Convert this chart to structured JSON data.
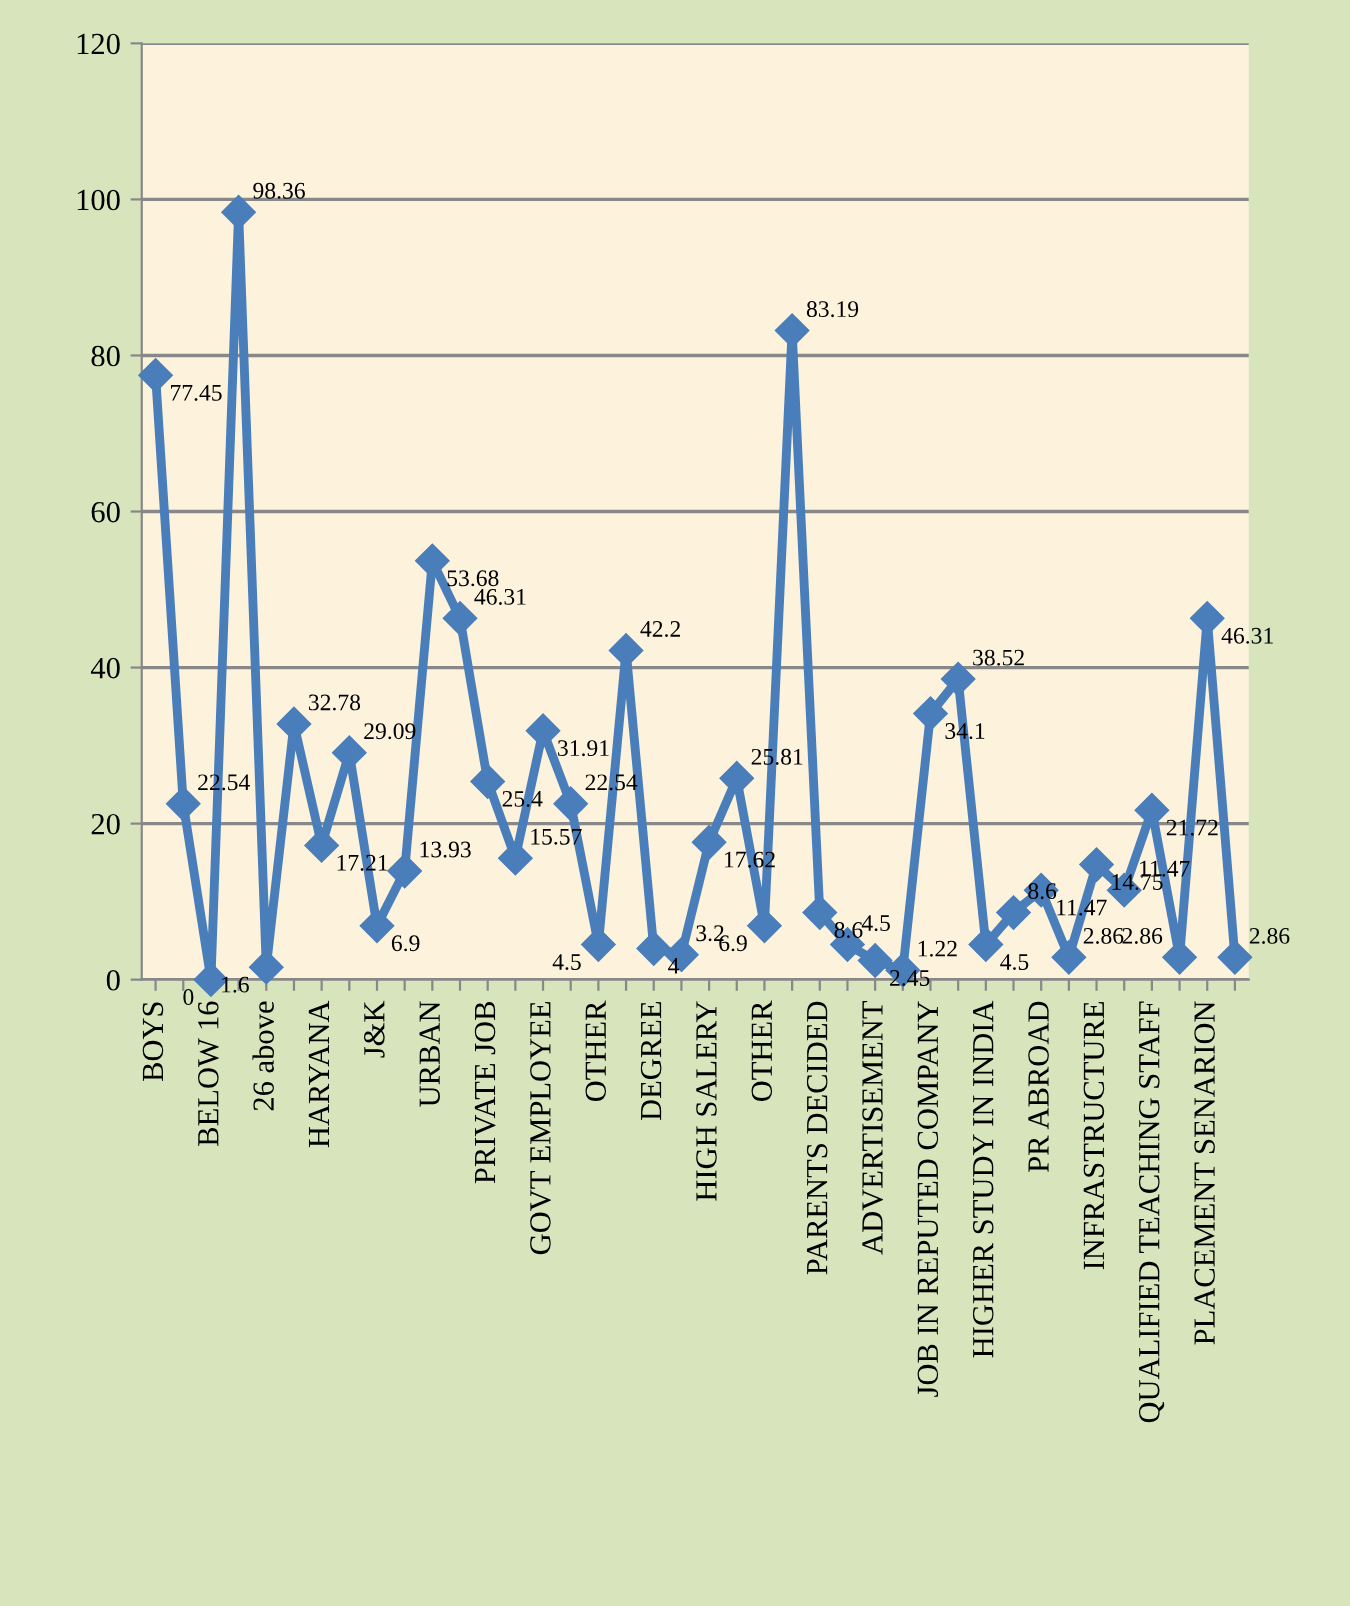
{
  "chart_data": {
    "type": "line",
    "categories": [
      "BOYS",
      null,
      "BELOW 16",
      null,
      "26 above",
      null,
      "HARYANA",
      null,
      "J&K",
      null,
      "URBAN",
      null,
      "PRIVATE JOB",
      null,
      "GOVT EMPLOYEE",
      null,
      "OTHER",
      null,
      "DEGREE",
      null,
      "HIGH SALERY",
      null,
      "OTHER",
      null,
      "PARENTS DECIDED",
      null,
      "ADVERTISEMENT",
      null,
      "JOB IN REPUTED COMPANY",
      null,
      "HIGHER STUDY IN INDIA",
      null,
      "PR ABROAD",
      null,
      "INFRASTRUCTURE",
      null,
      "QUALIFIED TEACHING STAFF",
      null,
      "PLACEMENT SENARION",
      null
    ],
    "series": [
      {
        "color": "#4a7ebb",
        "values": [
          77.45,
          22.54,
          0,
          98.36,
          1.6,
          32.78,
          17.21,
          29.09,
          6.9,
          13.93,
          53.68,
          46.31,
          25.4,
          15.57,
          31.91,
          22.54,
          4.5,
          42.2,
          4,
          3.2,
          17.62,
          25.81,
          6.9,
          83.19,
          8.6,
          4.5,
          2.45,
          1.22,
          34.1,
          38.52,
          4.5,
          8.6,
          11.47,
          2.86,
          14.75,
          11.47,
          21.72,
          2.86,
          46.31,
          2.86
        ]
      }
    ],
    "ylim": [
      0,
      120
    ],
    "yticks": [
      0,
      20,
      40,
      60,
      80,
      100,
      120
    ],
    "grid": "y",
    "marker": "diamond",
    "line_style": "solid",
    "data_labels": true,
    "legend": false
  }
}
